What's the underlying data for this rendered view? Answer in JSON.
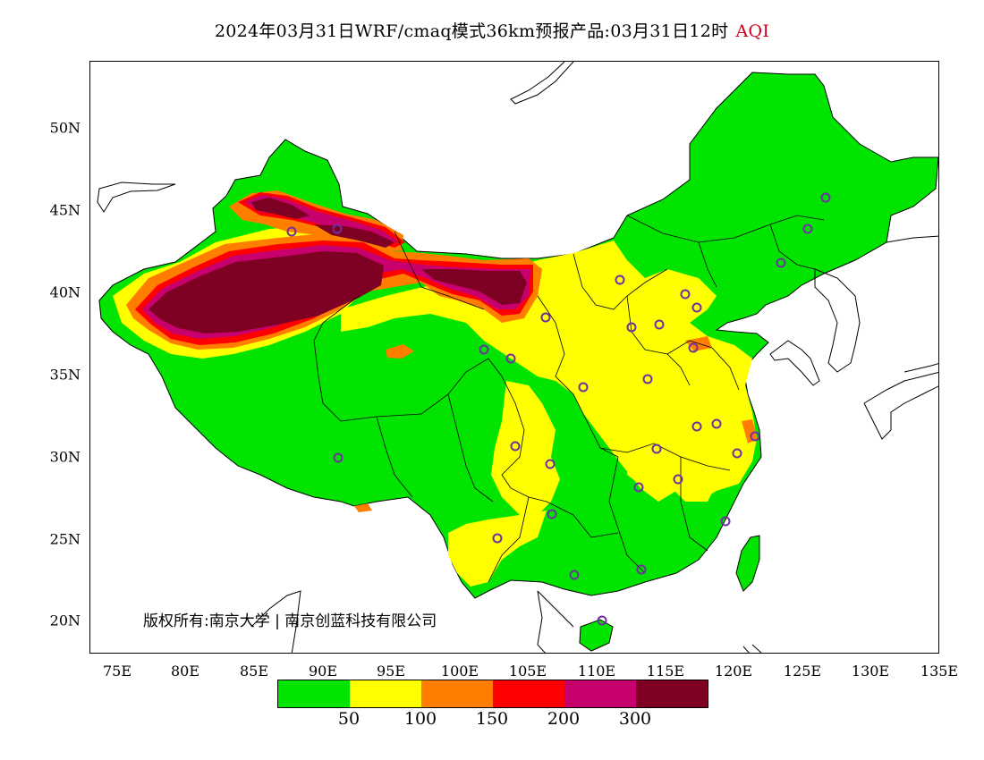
{
  "title": "2024年03月31日WRF/cmaq模式36km预报产品:03月31日12时",
  "title_variable": "AQI",
  "y_ticks": [
    "50N",
    "45N",
    "40N",
    "35N",
    "30N",
    "25N",
    "20N"
  ],
  "x_ticks": [
    "75E",
    "80E",
    "85E",
    "90E",
    "95E",
    "100E",
    "105E",
    "110E",
    "115E",
    "120E",
    "125E",
    "130E",
    "135E"
  ],
  "copyright": "版权所有:南京大学 | 南京创蓝科技有限公司",
  "legend": {
    "colors": [
      "#00e400",
      "#ffff00",
      "#ff7e00",
      "#ff0000",
      "#c8006e",
      "#7e0023"
    ],
    "labels": [
      "50",
      "100",
      "150",
      "200",
      "300"
    ]
  },
  "map": {
    "extent": {
      "lon": [
        73,
        135
      ],
      "lat": [
        18,
        54
      ]
    },
    "colors": {
      "good": "#00e400",
      "moderate": "#ffff00",
      "usg": "#ff7e00",
      "unhealthy": "#ff0000",
      "very": "#c8006e",
      "hazard": "#7e0023",
      "ocean": "#ffffff",
      "outline": "#000000",
      "station": "#7030a0"
    }
  }
}
